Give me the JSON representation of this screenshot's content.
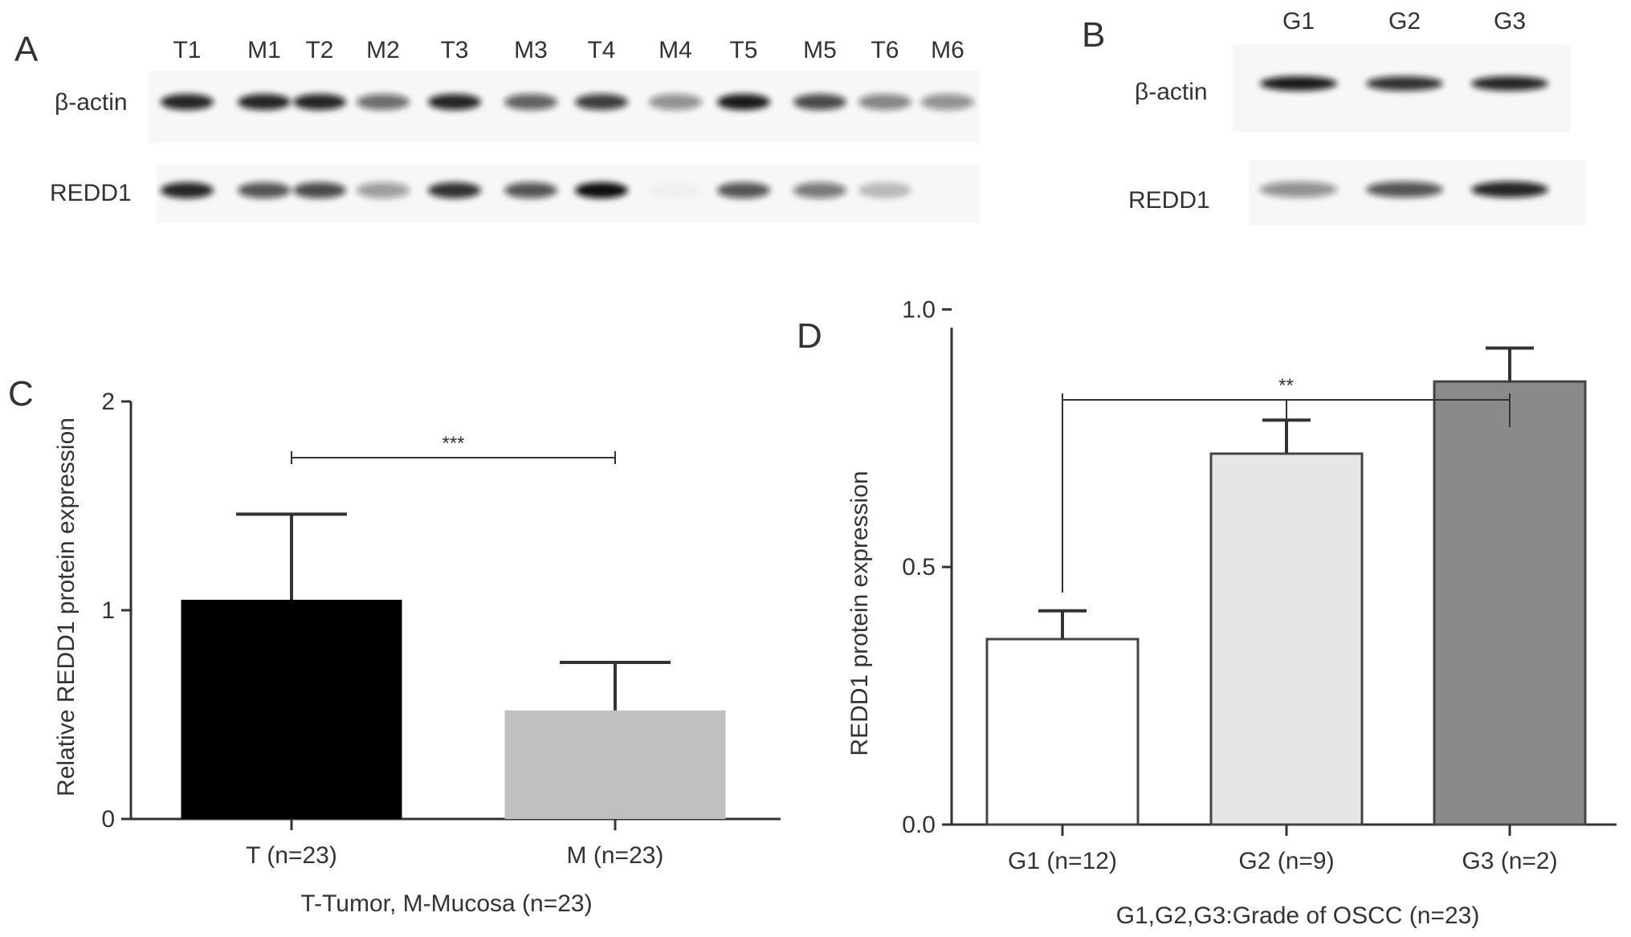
{
  "panels": {
    "a": {
      "letter": "A",
      "lane_labels": [
        "T1",
        "M1",
        "T2",
        "M2",
        "T3",
        "M3",
        "T4",
        "M4",
        "T5",
        "M5",
        "T6",
        "M6"
      ],
      "row_labels": [
        "β-actin",
        "REDD1"
      ],
      "band_intensity": {
        "beta_actin": [
          0.9,
          0.9,
          0.9,
          0.6,
          0.9,
          0.65,
          0.8,
          0.45,
          0.95,
          0.75,
          0.5,
          0.45
        ],
        "redd1": [
          0.9,
          0.7,
          0.75,
          0.4,
          0.85,
          0.7,
          1.0,
          0.03,
          0.7,
          0.55,
          0.25,
          0.0
        ]
      }
    },
    "b": {
      "letter": "B",
      "lane_labels": [
        "G1",
        "G2",
        "G3"
      ],
      "row_labels": [
        "β-actin",
        "REDD1"
      ],
      "band_intensity": {
        "beta_actin": [
          0.95,
          0.85,
          0.9
        ],
        "redd1": [
          0.45,
          0.7,
          0.9
        ]
      }
    },
    "c": {
      "letter": "C"
    },
    "d": {
      "letter": "D"
    }
  },
  "chart_data": [
    {
      "panel": "C",
      "type": "bar",
      "categories": [
        "T (n=23)",
        "M (n=23)"
      ],
      "values": [
        1.05,
        0.52
      ],
      "error_plus": [
        0.41,
        0.23
      ],
      "bar_colors": [
        "#000000",
        "#c0c0c0"
      ],
      "xlabel": "T-Tumor, M-Mucosa (n=23)",
      "ylabel": "Relative REDD1 protein expression",
      "ylim": [
        0,
        2
      ],
      "yticks": [
        "0",
        "1",
        "2"
      ],
      "significance": {
        "label": "***",
        "between": [
          0,
          1
        ]
      }
    },
    {
      "panel": "D",
      "type": "bar",
      "categories": [
        "G1 (n=12)",
        "G2 (n=9)",
        "G3 (n=2)"
      ],
      "values": [
        0.36,
        0.72,
        0.86
      ],
      "error_plus": [
        0.055,
        0.065,
        0.065
      ],
      "bar_colors": [
        "#ffffff",
        "#e6e6e6",
        "#8a8a8a"
      ],
      "xlabel": "G1,G2,G3:Grade of OSCC (n=23)",
      "ylabel": "REDD1 protein expression",
      "ylim": [
        0,
        1.2
      ],
      "yticks": [
        "0.0",
        "0.5",
        "1.0"
      ],
      "significance": {
        "label": "**",
        "between": [
          0,
          2
        ],
        "middle_drop": 1
      }
    }
  ]
}
